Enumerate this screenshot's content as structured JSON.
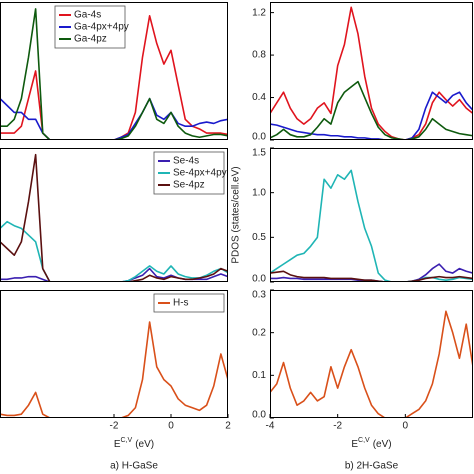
{
  "chart_data": [
    {
      "type": "line",
      "legend": "upper left",
      "x": [
        -6,
        -5.75,
        -5.5,
        -5.25,
        -5,
        -4.75,
        -4.5,
        -4.25,
        -4,
        -3.75,
        -3.5,
        -3.25,
        -3,
        -2.75,
        -2.5,
        -2.25,
        -2,
        -1.75,
        -1.5,
        -1.25,
        -1,
        -0.75,
        -0.5,
        -0.25,
        0,
        0.25,
        0.5,
        0.75,
        1,
        1.25,
        1.5,
        1.75,
        2
      ],
      "xlim": [
        -6,
        2
      ],
      "ylim": [
        0,
        1
      ],
      "series": [
        {
          "name": "Ga-4s",
          "color": "#e0141e",
          "values": [
            0.05,
            0.05,
            0.05,
            0.1,
            0.3,
            0.5,
            0.05,
            0,
            0,
            0,
            0,
            0,
            0,
            0,
            0,
            0,
            0,
            0.02,
            0.05,
            0.2,
            0.6,
            0.9,
            0.7,
            0.55,
            0.65,
            0.4,
            0.15,
            0.1,
            0.08,
            0.05,
            0.05,
            0.05,
            0.04
          ]
        },
        {
          "name": "Ga-4px+4py",
          "color": "#1a1acc",
          "values": [
            0.3,
            0.25,
            0.2,
            0.2,
            0.15,
            0.15,
            0.05,
            0,
            0,
            0,
            0,
            0,
            0,
            0,
            0,
            0,
            0,
            0.02,
            0.04,
            0.12,
            0.2,
            0.3,
            0.18,
            0.15,
            0.2,
            0.12,
            0.1,
            0.1,
            0.12,
            0.13,
            0.12,
            0.14,
            0.15
          ]
        },
        {
          "name": "Ga-4pz",
          "color": "#0e5a0e",
          "values": [
            0.1,
            0.1,
            0.15,
            0.3,
            0.6,
            0.95,
            0.05,
            0,
            0,
            0,
            0,
            0,
            0,
            0,
            0,
            0,
            0,
            0.01,
            0.03,
            0.1,
            0.2,
            0.3,
            0.15,
            0.12,
            0.2,
            0.1,
            0.05,
            0.03,
            0.02,
            0.03,
            0.04,
            0.04,
            0.03
          ]
        }
      ]
    },
    {
      "type": "line",
      "legend": "upper right",
      "x": [
        -6,
        -5.75,
        -5.5,
        -5.25,
        -5,
        -4.75,
        -4.5,
        -4.25,
        -4,
        -3.75,
        -3.5,
        -3.25,
        -3,
        -2.75,
        -2.5,
        -2.25,
        -2,
        -1.75,
        -1.5,
        -1.25,
        -1,
        -0.75,
        -0.5,
        -0.25,
        0,
        0.25,
        0.5,
        0.75,
        1,
        1.25,
        1.5,
        1.75,
        2
      ],
      "xlim": [
        -6,
        2
      ],
      "ylim": [
        0,
        1
      ],
      "series": [
        {
          "name": "Se-4s",
          "color": "#3a1fb0",
          "values": [
            0.02,
            0.02,
            0.03,
            0.03,
            0.04,
            0.04,
            0.02,
            0,
            0,
            0,
            0,
            0,
            0,
            0,
            0,
            0,
            0,
            0,
            0.01,
            0.03,
            0.05,
            0.1,
            0.04,
            0.03,
            0.05,
            0.03,
            0.02,
            0.02,
            0.02,
            0.02,
            0.04,
            0.06,
            0.04
          ]
        },
        {
          "name": "Se-4px+4py",
          "color": "#1fb5b5",
          "values": [
            0.4,
            0.45,
            0.42,
            0.4,
            0.35,
            0.3,
            0.1,
            0,
            0,
            0,
            0,
            0,
            0,
            0,
            0,
            0,
            0,
            0,
            0.01,
            0.04,
            0.08,
            0.12,
            0.08,
            0.06,
            0.12,
            0.06,
            0.04,
            0.03,
            0.03,
            0.05,
            0.08,
            0.1,
            0.07
          ]
        },
        {
          "name": "Se-4pz",
          "color": "#5a1010",
          "values": [
            0.3,
            0.25,
            0.2,
            0.3,
            0.6,
            0.95,
            0.1,
            0,
            0,
            0,
            0,
            0,
            0,
            0,
            0,
            0,
            0,
            0,
            0,
            0.01,
            0.02,
            0.05,
            0.03,
            0.02,
            0.04,
            0.03,
            0.02,
            0.02,
            0.03,
            0.04,
            0.06,
            0.1,
            0.08
          ]
        }
      ]
    },
    {
      "type": "line",
      "legend": "upper right",
      "xlabel": {
        "base": "E",
        "sup": "C,V",
        "unit": "(eV)"
      },
      "caption": "a) H-GaSe",
      "x": [
        -6,
        -5.75,
        -5.5,
        -5.25,
        -5,
        -4.75,
        -4.5,
        -4.25,
        -4,
        -3.75,
        -3.5,
        -3.25,
        -3,
        -2.75,
        -2.5,
        -2.25,
        -2,
        -1.75,
        -1.5,
        -1.25,
        -1,
        -0.75,
        -0.5,
        -0.25,
        0,
        0.25,
        0.5,
        0.75,
        1,
        1.25,
        1.5,
        1.75,
        2
      ],
      "xlim": [
        -6,
        2
      ],
      "xticks": [
        -2,
        0,
        2
      ],
      "ylim": [
        0,
        1
      ],
      "series": [
        {
          "name": "H-s",
          "color": "#d9501a",
          "values": [
            0.03,
            0.02,
            0.02,
            0.03,
            0.1,
            0.2,
            0.03,
            0,
            0,
            0,
            0,
            0,
            0,
            0,
            0,
            0,
            0,
            0,
            0.02,
            0.08,
            0.3,
            0.75,
            0.4,
            0.3,
            0.25,
            0.15,
            0.1,
            0.08,
            0.06,
            0.1,
            0.25,
            0.5,
            0.3
          ]
        }
      ]
    },
    {
      "type": "line",
      "x": [
        -4,
        -3.8,
        -3.6,
        -3.4,
        -3.2,
        -3,
        -2.8,
        -2.6,
        -2.4,
        -2.2,
        -2,
        -1.8,
        -1.6,
        -1.4,
        -1.2,
        -1,
        -0.8,
        -0.6,
        -0.4,
        -0.2,
        0,
        0.2,
        0.4,
        0.6,
        0.8,
        1,
        1.2,
        1.4,
        1.6,
        1.8,
        2
      ],
      "xlim": [
        -4,
        2
      ],
      "ylim": [
        0,
        1.3
      ],
      "yticks": [
        {
          "value": 0,
          "label": "0.0"
        },
        0.4,
        0.8,
        1.2
      ],
      "series": [
        {
          "color": "#e0141e",
          "values": [
            0.25,
            0.35,
            0.45,
            0.3,
            0.2,
            0.15,
            0.2,
            0.3,
            0.35,
            0.25,
            0.7,
            0.9,
            1.25,
            1.0,
            0.6,
            0.3,
            0.15,
            0.08,
            0.03,
            0.01,
            0,
            0.02,
            0.05,
            0.15,
            0.35,
            0.45,
            0.38,
            0.32,
            0.38,
            0.3,
            0.25
          ]
        },
        {
          "color": "#1a1acc",
          "values": [
            0.15,
            0.14,
            0.12,
            0.1,
            0.08,
            0.07,
            0.06,
            0.05,
            0.05,
            0.04,
            0.04,
            0.03,
            0.03,
            0.02,
            0.02,
            0.01,
            0.01,
            0,
            0,
            0,
            0,
            0.02,
            0.1,
            0.3,
            0.45,
            0.4,
            0.35,
            0.42,
            0.45,
            0.35,
            0.28
          ]
        },
        {
          "color": "#0e5a0e",
          "values": [
            0.02,
            0.05,
            0.1,
            0.05,
            0.03,
            0.03,
            0.05,
            0.12,
            0.2,
            0.15,
            0.35,
            0.45,
            0.5,
            0.55,
            0.4,
            0.25,
            0.12,
            0.05,
            0.02,
            0.01,
            0,
            0.01,
            0.03,
            0.1,
            0.2,
            0.15,
            0.1,
            0.08,
            0.06,
            0.05,
            0.04
          ]
        }
      ]
    },
    {
      "type": "line",
      "ylabel": "PDOS (states/cell.eV)",
      "x": [
        -4,
        -3.8,
        -3.6,
        -3.4,
        -3.2,
        -3,
        -2.8,
        -2.6,
        -2.4,
        -2.2,
        -2,
        -1.8,
        -1.6,
        -1.4,
        -1.2,
        -1,
        -0.8,
        -0.6,
        -0.4,
        -0.2,
        0,
        0.2,
        0.4,
        0.6,
        0.8,
        1,
        1.2,
        1.4,
        1.6,
        1.8,
        2
      ],
      "xlim": [
        -4,
        2
      ],
      "ylim": [
        0,
        1.5
      ],
      "yticks": [
        {
          "value": 0,
          "label": "0.0"
        },
        0.5,
        {
          "value": 1,
          "label": "1.0"
        },
        1.5
      ],
      "series": [
        {
          "color": "#3a1fb0",
          "values": [
            0.04,
            0.04,
            0.05,
            0.04,
            0.04,
            0.03,
            0.03,
            0.03,
            0.03,
            0.03,
            0.03,
            0.03,
            0.03,
            0.02,
            0.02,
            0.02,
            0.01,
            0,
            0,
            0,
            0,
            0.01,
            0.03,
            0.08,
            0.15,
            0.2,
            0.12,
            0.1,
            0.15,
            0.12,
            0.1
          ]
        },
        {
          "color": "#1fb5b5",
          "values": [
            0.1,
            0.15,
            0.2,
            0.25,
            0.3,
            0.32,
            0.4,
            0.5,
            1.15,
            1.05,
            1.2,
            1.15,
            1.25,
            0.9,
            0.6,
            0.4,
            0.1,
            0.02,
            0,
            0,
            0,
            0.01,
            0.02,
            0.05,
            0.05,
            0.03,
            0.02,
            0.03,
            0.05,
            0.04,
            0.03
          ]
        },
        {
          "color": "#5a1010",
          "values": [
            0.1,
            0.11,
            0.12,
            0.08,
            0.06,
            0.05,
            0.05,
            0.05,
            0.05,
            0.04,
            0.04,
            0.04,
            0.04,
            0.03,
            0.02,
            0.02,
            0.01,
            0,
            0,
            0,
            0,
            0.01,
            0.02,
            0.04,
            0.05,
            0.06,
            0.05,
            0.05,
            0.06,
            0.05,
            0.04
          ]
        }
      ]
    },
    {
      "type": "line",
      "xlabel": {
        "base": "E",
        "sup": "C,V",
        "unit": "(eV)"
      },
      "caption": "b) 2H-GaSe",
      "x": [
        -4,
        -3.8,
        -3.6,
        -3.4,
        -3.2,
        -3,
        -2.8,
        -2.6,
        -2.4,
        -2.2,
        -2,
        -1.8,
        -1.6,
        -1.4,
        -1.2,
        -1,
        -0.8,
        -0.6,
        -0.4,
        -0.2,
        0,
        0.2,
        0.4,
        0.6,
        0.8,
        1,
        1.2,
        1.4,
        1.6,
        1.8,
        2
      ],
      "xlim": [
        -4,
        2
      ],
      "xticks": [
        -4,
        -2,
        0
      ],
      "ylim": [
        0,
        0.3
      ],
      "yticks": [
        {
          "value": 0,
          "label": "0.0"
        },
        0.1,
        0.2,
        0.3
      ],
      "series": [
        {
          "color": "#d9501a",
          "values": [
            0.06,
            0.08,
            0.13,
            0.07,
            0.03,
            0.04,
            0.06,
            0.04,
            0.05,
            0.12,
            0.07,
            0.12,
            0.16,
            0.12,
            0.07,
            0.03,
            0.01,
            0,
            0,
            0,
            0,
            0.01,
            0.02,
            0.04,
            0.08,
            0.15,
            0.25,
            0.2,
            0.14,
            0.22,
            0.12
          ]
        }
      ]
    }
  ]
}
